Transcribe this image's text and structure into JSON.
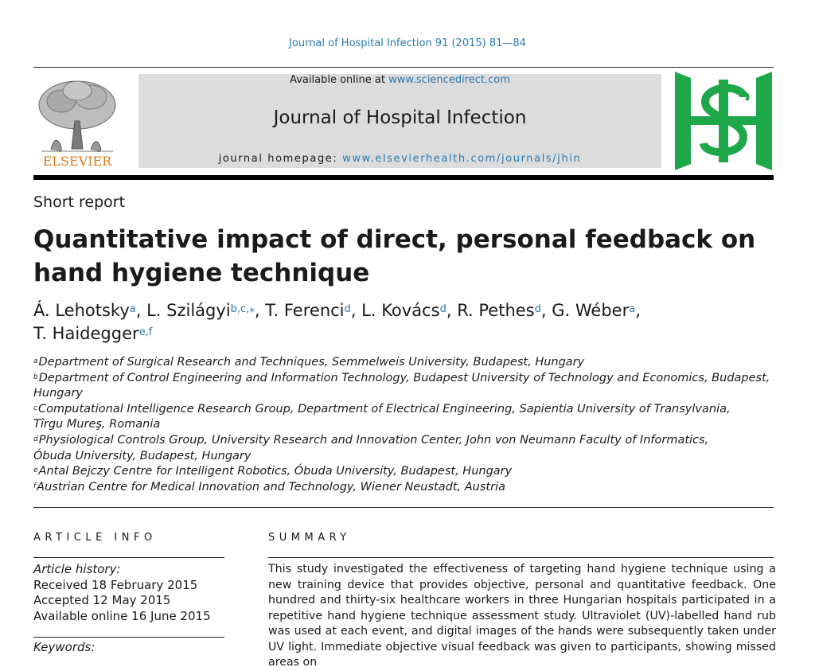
{
  "header": {
    "citation": "Journal of Hospital Infection 91 (2015) 81—84",
    "publisher_logo_text": "ELSEVIER",
    "available_prefix": "Available online at ",
    "available_link": "www.sciencedirect.com",
    "journal_name": "Journal of Hospital Infection",
    "homepage_prefix": "journal homepage: ",
    "homepage_link": "www.elsevierhealth.com/journals/jhin",
    "colors": {
      "link": "#2a7ab0",
      "elsevier_orange": "#d77a1b",
      "his_green": "#1fa84a",
      "banner_grey": "#dcdcdc"
    },
    "icons": [
      "elsevier-tree-icon",
      "his-journal-logo-icon"
    ]
  },
  "article": {
    "type": "Short report",
    "title_line1": "Quantitative impact of direct, personal feedback on",
    "title_line2": "hand hygiene technique",
    "authors": [
      {
        "name": "Á. Lehotsky",
        "sup": "a",
        "sep": ", "
      },
      {
        "name": "L. Szilágyi",
        "sup": "b,c,⁎",
        "sep": ", "
      },
      {
        "name": "T. Ferenci",
        "sup": "d",
        "sep": ", "
      },
      {
        "name": "L. Kovács",
        "sup": "d",
        "sep": ", "
      },
      {
        "name": "R. Pethes",
        "sup": "d",
        "sep": ", "
      },
      {
        "name": "G. Wéber",
        "sup": "a",
        "sep": ","
      },
      {
        "name": "T. Haidegger",
        "sup": "e,f",
        "sep": ""
      }
    ],
    "affiliations": [
      {
        "key": "a",
        "line1": "Department of Surgical Research and Techniques, Semmelweis University, Budapest, Hungary",
        "line2": ""
      },
      {
        "key": "b",
        "line1": "Department of Control Engineering and Information Technology, Budapest University of Technology and Economics, Budapest,",
        "line2": "Hungary"
      },
      {
        "key": "c",
        "line1": "Computational Intelligence Research Group, Department of Electrical Engineering, Sapientia University of Transylvania,",
        "line2": "Tîrgu Mureş, Romania"
      },
      {
        "key": "d",
        "line1": "Physiological Controls Group, University Research and Innovation Center, John von Neumann Faculty of Informatics,",
        "line2": "Óbuda University, Budapest, Hungary"
      },
      {
        "key": "e",
        "line1": "Antal Bejczy Centre for Intelligent Robotics, Óbuda University, Budapest, Hungary",
        "line2": ""
      },
      {
        "key": "f",
        "line1": "Austrian Centre for Medical Innovation and Technology, Wiener Neustadt, Austria",
        "line2": ""
      }
    ]
  },
  "article_info": {
    "heading": "ARTICLE INFO",
    "history_label": "Article history:",
    "received": "Received 18 February 2015",
    "accepted": "Accepted 12 May 2015",
    "online": "Available online 16 June 2015",
    "keywords_label": "Keywords:"
  },
  "summary": {
    "heading": "SUMMARY",
    "text": "This study investigated the effectiveness of targeting hand hygiene technique using a new training device that provides objective, personal and quantitative feedback. One hundred and thirty-six healthcare workers in three Hungarian hospitals participated in a repetitive hand hygiene technique assessment study. Ultraviolet (UV)-labelled hand rub was used at each event, and digital images of the hands were subsequently taken under UV light. Immediate objective visual feedback was given to participants, showing missed areas on"
  }
}
